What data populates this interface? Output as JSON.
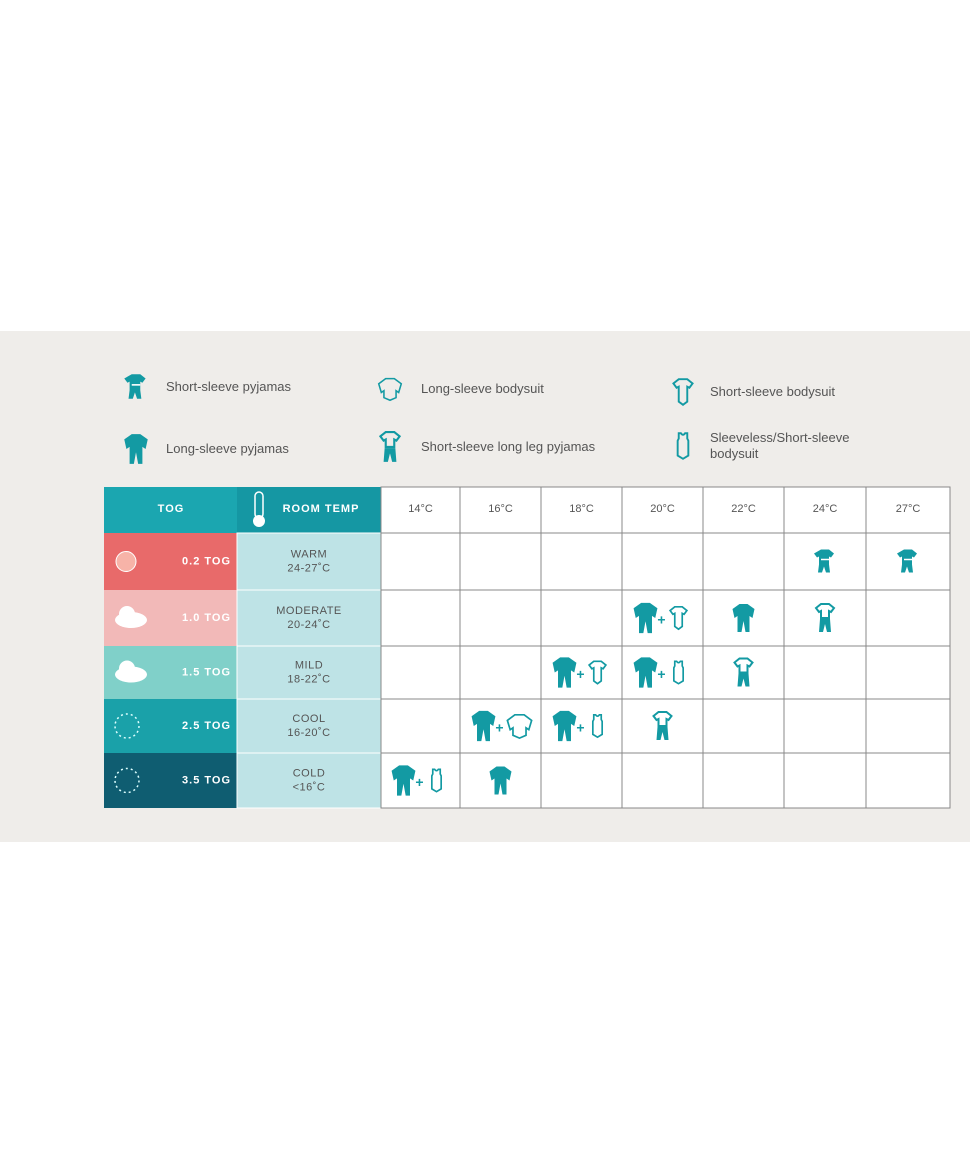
{
  "legend": [
    {
      "icon": "sp",
      "label": "Short-sleeve pyjamas"
    },
    {
      "icon": "lb",
      "label": "Long-sleeve bodysuit"
    },
    {
      "icon": "sb",
      "label": "Short-sleeve bodysuit"
    },
    {
      "icon": "lp",
      "label": "Long-sleeve pyjamas"
    },
    {
      "icon": "sll",
      "label": "Short-sleeve long leg pyjamas"
    },
    {
      "icon": "sl",
      "label": "Sleeveless/Short-sleeve bodysuit"
    }
  ],
  "table": {
    "header": {
      "tog": "TOG",
      "room_temp": "ROOM TEMP",
      "temps": [
        "14°C",
        "16°C",
        "18°C",
        "20°C",
        "22°C",
        "24°C",
        "27°C"
      ]
    },
    "rows": [
      {
        "tog": "0.2 TOG",
        "temp_name": "WARM",
        "temp_range": "24-27˚C"
      },
      {
        "tog": "1.0 TOG",
        "temp_name": "MODERATE",
        "temp_range": "20-24˚C"
      },
      {
        "tog": "1.5 TOG",
        "temp_name": "MILD",
        "temp_range": "18-22˚C"
      },
      {
        "tog": "2.5 TOG",
        "temp_name": "COOL",
        "temp_range": "16-20˚C"
      },
      {
        "tog": "3.5 TOG",
        "temp_name": "COLD",
        "temp_range": "<16˚C"
      }
    ]
  }
}
